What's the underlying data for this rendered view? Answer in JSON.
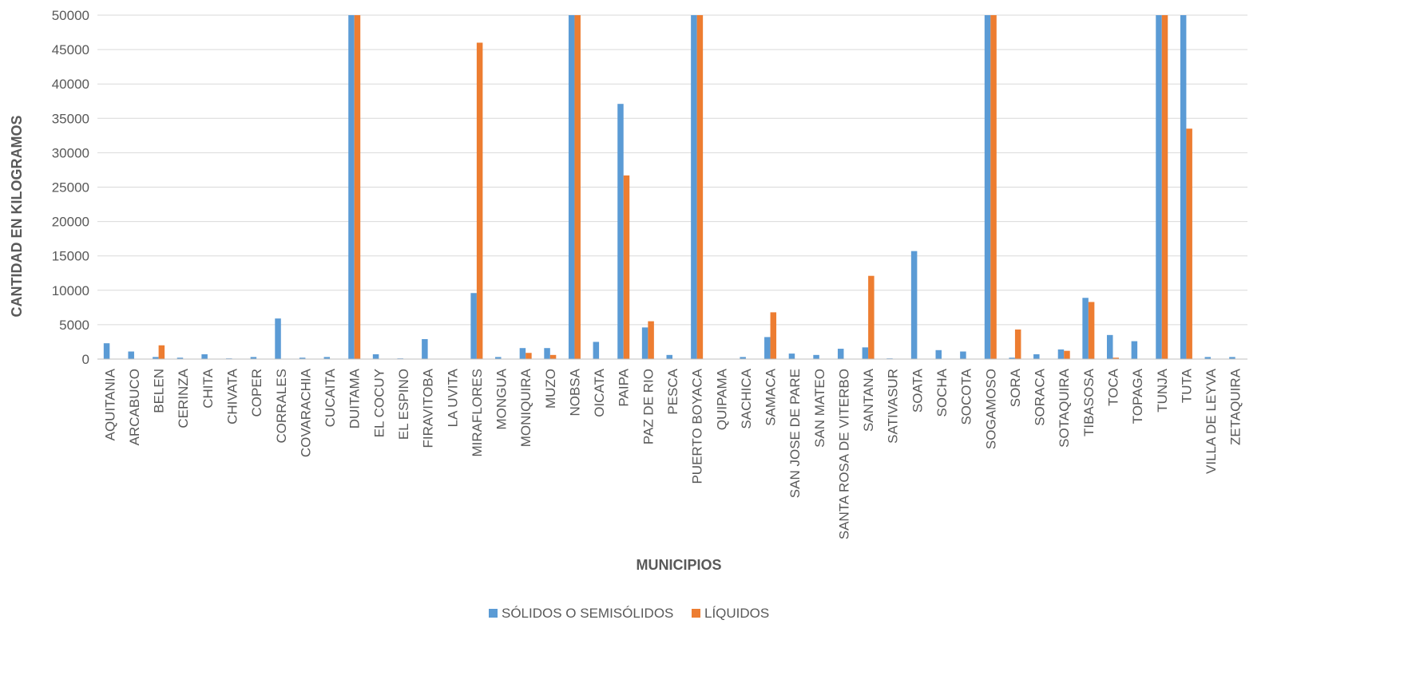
{
  "chart_data": {
    "type": "bar",
    "title": "",
    "xlabel": "MUNICIPIOS",
    "ylabel": "CANTIDAD EN KILOGRAMOS",
    "ylim": [
      0,
      50000
    ],
    "yticks": [
      0,
      5000,
      10000,
      15000,
      20000,
      25000,
      30000,
      35000,
      40000,
      45000,
      50000
    ],
    "grid": true,
    "legend_position": "bottom",
    "categories": [
      "AQUITANIA",
      "ARCABUCO",
      "BELEN",
      "CERINZA",
      "CHITA",
      "CHIVATA",
      "COPER",
      "CORRALES",
      "COVARACHIA",
      "CUCAITA",
      "DUITAMA",
      "EL COCUY",
      "EL ESPINO",
      "FIRAVITOBA",
      "LA UVITA",
      "MIRAFLORES",
      "MONGUA",
      "MONIQUIRA",
      "MUZO",
      "NOBSA",
      "OICATA",
      "PAIPA",
      "PAZ DE RIO",
      "PESCA",
      "PUERTO BOYACA",
      "QUIPAMA",
      "SACHICA",
      "SAMACA",
      "SAN JOSE DE PARE",
      "SAN MATEO",
      "SANTA ROSA DE VITERBO",
      "SANTANA",
      "SATIVASUR",
      "SOATA",
      "SOCHA",
      "SOCOTA",
      "SOGAMOSO",
      "SORA",
      "SORACA",
      "SOTAQUIRA",
      "TIBASOSA",
      "TOCA",
      "TOPAGA",
      "TUNJA",
      "TUTA",
      "VILLA DE LEYVA",
      "ZETAQUIRA"
    ],
    "series": [
      {
        "name": "SÓLIDOS O SEMISÓLIDOS",
        "color": "#5B9BD5",
        "values": [
          2300,
          1100,
          300,
          200,
          700,
          100,
          300,
          5900,
          200,
          300,
          50000,
          700,
          100,
          2900,
          0,
          9600,
          300,
          1600,
          1600,
          50000,
          2500,
          37100,
          4600,
          600,
          50000,
          0,
          300,
          3200,
          800,
          600,
          1500,
          1700,
          100,
          15700,
          1300,
          1100,
          50000,
          200,
          700,
          1400,
          8900,
          3500,
          2600,
          50000,
          50000,
          300,
          300
        ]
      },
      {
        "name": "LÍQUIDOS",
        "color": "#ED7D31",
        "values": [
          0,
          0,
          2000,
          0,
          0,
          0,
          0,
          0,
          0,
          0,
          50000,
          0,
          0,
          0,
          0,
          46000,
          0,
          900,
          600,
          50000,
          0,
          26700,
          5500,
          0,
          50000,
          0,
          0,
          6800,
          0,
          0,
          0,
          12100,
          0,
          0,
          0,
          0,
          50000,
          4300,
          0,
          1200,
          8300,
          200,
          0,
          50000,
          33500,
          0,
          0
        ]
      }
    ]
  }
}
